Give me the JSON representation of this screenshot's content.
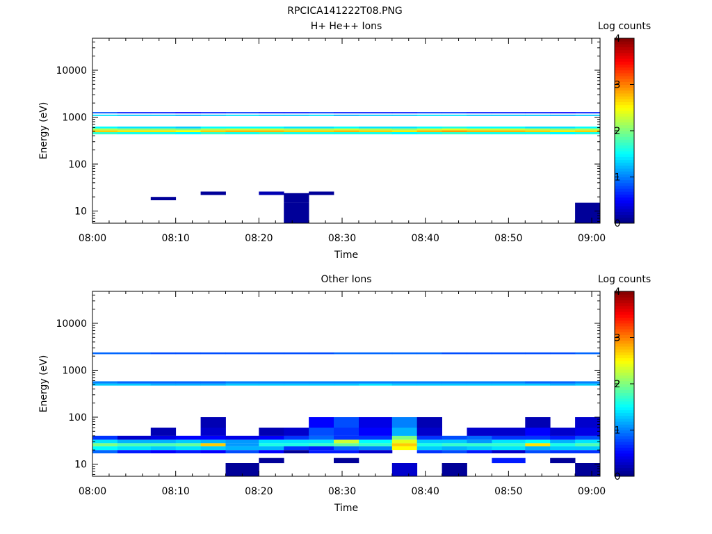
{
  "title": "RPCICA141222T08.PNG",
  "chart_data": [
    {
      "type": "heatmap",
      "title": "H+ He++ Ions",
      "xlabel": "Time",
      "ylabel": "Energy (eV)",
      "x_ticks": [
        "08:00",
        "08:10",
        "08:20",
        "08:30",
        "08:40",
        "08:50",
        "09:00"
      ],
      "x_range": [
        "08:00",
        "09:01"
      ],
      "y_scale": "log",
      "y_ticks": [
        "10",
        "100",
        "1000",
        "10000"
      ],
      "y_range": [
        5.5,
        48000
      ],
      "colorbar": {
        "label": "Log counts",
        "ticks": [
          "0",
          "1",
          "2",
          "3",
          "4"
        ],
        "range": [
          0,
          4
        ],
        "colormap": "jet"
      },
      "time_bins": [
        "08:00",
        "08:03",
        "08:07",
        "08:10",
        "08:13",
        "08:16",
        "08:20",
        "08:23",
        "08:26",
        "08:29",
        "08:32",
        "08:36",
        "08:39",
        "08:42",
        "08:45",
        "08:48",
        "08:52",
        "08:55",
        "08:58"
      ],
      "bands": [
        {
          "emin": 430,
          "emax": 480,
          "levels": [
            1.7,
            1.6,
            1.6,
            1.5,
            1.7,
            1.6,
            1.7,
            1.6,
            1.6,
            1.6,
            1.6,
            1.5,
            1.6,
            1.7,
            1.6,
            1.6,
            1.6,
            1.5,
            1.6
          ]
        },
        {
          "emin": 480,
          "emax": 525,
          "levels": [
            2.7,
            2.6,
            2.6,
            2.5,
            2.7,
            2.8,
            2.8,
            2.7,
            2.7,
            2.8,
            2.7,
            2.6,
            2.8,
            2.9,
            2.8,
            2.8,
            2.7,
            2.6,
            2.7
          ]
        },
        {
          "emin": 525,
          "emax": 575,
          "levels": [
            2.2,
            2.1,
            2.1,
            2.0,
            2.2,
            2.3,
            2.3,
            2.2,
            2.2,
            2.3,
            2.2,
            2.1,
            2.3,
            2.4,
            2.3,
            2.3,
            2.2,
            2.1,
            2.2
          ]
        },
        {
          "emin": 575,
          "emax": 630,
          "levels": [
            1.5,
            1.4,
            1.4,
            1.3,
            1.5,
            1.5,
            1.5,
            1.4,
            1.4,
            1.5,
            1.4,
            1.4,
            1.5,
            1.6,
            1.5,
            1.5,
            1.4,
            1.4,
            1.5
          ]
        },
        {
          "emin": 1060,
          "emax": 1130,
          "levels": [
            1.4,
            1.3,
            1.3,
            1.2,
            1.3,
            1.4,
            1.3,
            1.3,
            1.4,
            1.2,
            1.3,
            1.3,
            1.4,
            1.4,
            1.3,
            1.3,
            1.3,
            1.2,
            1.3
          ]
        },
        {
          "emin": 1200,
          "emax": 1280,
          "levels": [
            0.8,
            0.6,
            0.6,
            0.5,
            0.6,
            0.7,
            0.6,
            0.6,
            0.7,
            0.6,
            0.6,
            0.6,
            0.7,
            0.7,
            0.6,
            0.6,
            0.6,
            0.5,
            0.6
          ]
        },
        {
          "emin": 15,
          "emax": 24,
          "levels": [
            null,
            null,
            null,
            null,
            null,
            null,
            null,
            0.1,
            null,
            null,
            null,
            null,
            null,
            null,
            null,
            null,
            null,
            null,
            null
          ]
        },
        {
          "emin": 5.5,
          "emax": 15,
          "levels": [
            null,
            null,
            null,
            null,
            null,
            null,
            null,
            0.1,
            null,
            null,
            null,
            null,
            null,
            null,
            null,
            null,
            null,
            null,
            0.1
          ]
        },
        {
          "emin": 17,
          "emax": 20,
          "levels": [
            null,
            null,
            0.1,
            null,
            null,
            null,
            null,
            null,
            null,
            null,
            null,
            null,
            null,
            null,
            null,
            null,
            null,
            null,
            null
          ]
        },
        {
          "emin": 22,
          "emax": 26,
          "levels": [
            null,
            null,
            null,
            null,
            0.1,
            null,
            0.2,
            null,
            0.1,
            null,
            null,
            null,
            null,
            null,
            null,
            null,
            null,
            null,
            null
          ]
        }
      ]
    },
    {
      "type": "heatmap",
      "title": "Other Ions",
      "xlabel": "Time",
      "ylabel": "Energy (eV)",
      "x_ticks": [
        "08:00",
        "08:10",
        "08:20",
        "08:30",
        "08:40",
        "08:50",
        "09:00"
      ],
      "x_range": [
        "08:00",
        "09:01"
      ],
      "y_scale": "log",
      "y_ticks": [
        "10",
        "100",
        "1000",
        "10000"
      ],
      "y_range": [
        5.5,
        48000
      ],
      "colorbar": {
        "label": "Log counts",
        "ticks": [
          "0",
          "1",
          "2",
          "3",
          "4"
        ],
        "range": [
          0,
          4
        ],
        "colormap": "jet"
      },
      "time_bins": [
        "08:00",
        "08:03",
        "08:07",
        "08:10",
        "08:13",
        "08:16",
        "08:20",
        "08:23",
        "08:26",
        "08:29",
        "08:32",
        "08:36",
        "08:39",
        "08:42",
        "08:45",
        "08:48",
        "08:52",
        "08:55",
        "08:58"
      ],
      "bands": [
        {
          "emin": 2200,
          "emax": 2400,
          "levels": [
            0.9,
            0.9,
            0.8,
            0.8,
            0.8,
            0.8,
            0.8,
            0.8,
            0.8,
            0.9,
            0.9,
            0.9,
            0.9,
            0.8,
            0.8,
            0.8,
            0.8,
            0.8,
            0.9
          ]
        },
        {
          "emin": 470,
          "emax": 520,
          "levels": [
            1.3,
            1.3,
            1.2,
            1.2,
            1.2,
            1.3,
            1.3,
            1.3,
            1.3,
            1.3,
            1.4,
            1.3,
            1.3,
            1.3,
            1.3,
            1.3,
            1.3,
            1.2,
            1.3
          ]
        },
        {
          "emin": 520,
          "emax": 580,
          "levels": [
            1.0,
            0.9,
            0.9,
            0.9,
            0.9,
            1.0,
            1.0,
            1.0,
            1.0,
            1.0,
            1.0,
            1.0,
            1.0,
            1.0,
            1.0,
            1.0,
            0.9,
            0.9,
            1.0
          ]
        },
        {
          "emin": 17,
          "emax": 20,
          "levels": [
            0.9,
            0.6,
            0.5,
            0.6,
            0.5,
            0.8,
            0.5,
            0.1,
            0.6,
            0.6,
            0.3,
            null,
            0.7,
            0.8,
            0.6,
            0.3,
            0.8,
            0.7,
            0.7
          ]
        },
        {
          "emin": 20,
          "emax": 24,
          "levels": [
            1.5,
            1.4,
            1.3,
            1.4,
            1.3,
            1.2,
            1.2,
            0.7,
            0.6,
            0.9,
            1.0,
            2.5,
            1.3,
            1.2,
            1.3,
            1.4,
            1.2,
            1.3,
            1.3
          ]
        },
        {
          "emin": 24,
          "emax": 28,
          "levels": [
            2.0,
            1.8,
            1.8,
            1.9,
            2.7,
            1.1,
            1.6,
            1.6,
            1.7,
            1.9,
            1.7,
            2.7,
            1.6,
            1.7,
            1.7,
            1.7,
            2.6,
            1.6,
            1.8
          ]
        },
        {
          "emin": 28,
          "emax": 33,
          "levels": [
            1.4,
            1.2,
            1.2,
            1.3,
            1.2,
            1.1,
            1.4,
            1.4,
            1.4,
            2.3,
            1.5,
            2.4,
            1.3,
            1.3,
            1.1,
            1.4,
            1.5,
            1.2,
            1.4
          ]
        },
        {
          "emin": 33,
          "emax": 40,
          "levels": [
            0.7,
            0.3,
            0.4,
            0.5,
            0.5,
            0.4,
            0.5,
            0.7,
            0.9,
            0.7,
            0.7,
            2.0,
            0.7,
            0.8,
            0.9,
            0.7,
            0.7,
            0.6,
            0.8
          ]
        },
        {
          "emin": 40,
          "emax": 60,
          "levels": [
            null,
            null,
            0.2,
            null,
            0.3,
            null,
            0.2,
            0.3,
            0.8,
            0.7,
            0.5,
            1.2,
            0.3,
            null,
            0.3,
            0.3,
            0.5,
            0.3,
            0.4
          ]
        },
        {
          "emin": 60,
          "emax": 100,
          "levels": [
            null,
            null,
            null,
            null,
            0.2,
            null,
            null,
            null,
            0.5,
            0.8,
            0.4,
            1.0,
            0.2,
            null,
            null,
            null,
            0.2,
            null,
            0.3
          ]
        },
        {
          "emin": 10.5,
          "emax": 13.5,
          "levels": [
            null,
            null,
            null,
            null,
            null,
            null,
            0.1,
            null,
            null,
            0.1,
            null,
            null,
            null,
            null,
            null,
            0.6,
            null,
            0.1,
            null
          ]
        },
        {
          "emin": 5.5,
          "emax": 10.5,
          "levels": [
            null,
            null,
            null,
            null,
            null,
            0.1,
            null,
            null,
            null,
            null,
            null,
            0.3,
            null,
            0.1,
            null,
            null,
            null,
            null,
            0.1
          ]
        }
      ]
    }
  ]
}
